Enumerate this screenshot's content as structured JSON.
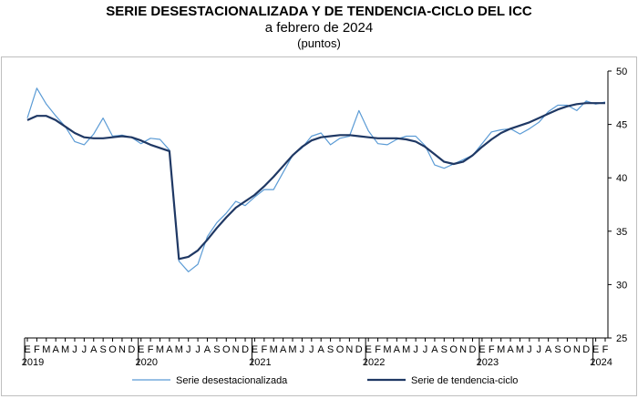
{
  "chart_data": {
    "type": "line",
    "title": "SERIE DESESTACIONALIZADA Y DE TENDENCIA-CICLO DEL ICC",
    "subtitle": "a febrero de 2024",
    "unit": "(puntos)",
    "ylim": [
      25,
      50
    ],
    "yticks": [
      "25",
      "30",
      "35",
      "40",
      "45",
      "50"
    ],
    "month_labels": [
      "E",
      "F",
      "M",
      "A",
      "M",
      "J",
      "J",
      "A",
      "S",
      "O",
      "N",
      "D"
    ],
    "year_labels": [
      "2019",
      "2020",
      "2021",
      "2022",
      "2023",
      "2024"
    ],
    "legend": [
      "Serie desestacionalizada",
      "Serie de tendencia-ciclo"
    ],
    "grid": false,
    "legend_position": "bottom",
    "colors": {
      "serie_desestacionalizada": "#5b9bd5",
      "tendencia_ciclo": "#1f3864"
    },
    "series": [
      {
        "name": "Serie desestacionalizada",
        "values": [
          45.6,
          48.4,
          46.9,
          45.8,
          44.8,
          43.4,
          43.1,
          44.1,
          45.6,
          43.9,
          44.0,
          43.8,
          43.2,
          43.7,
          43.6,
          42.6,
          32.2,
          31.2,
          31.9,
          34.5,
          35.8,
          36.7,
          37.8,
          37.4,
          38.2,
          38.9,
          38.9,
          40.5,
          42.1,
          42.8,
          43.9,
          44.2,
          43.1,
          43.7,
          43.9,
          46.3,
          44.4,
          43.2,
          43.1,
          43.6,
          43.9,
          43.9,
          43.0,
          41.2,
          40.9,
          41.3,
          41.7,
          42.1,
          43.2,
          44.3,
          44.5,
          44.6,
          44.1,
          44.6,
          45.2,
          46.2,
          46.8,
          46.8,
          46.3,
          47.2,
          46.9,
          47.1
        ]
      },
      {
        "name": "Serie de tendencia-ciclo",
        "values": [
          45.4,
          45.8,
          45.8,
          45.4,
          44.8,
          44.2,
          43.8,
          43.7,
          43.7,
          43.8,
          43.9,
          43.8,
          43.5,
          43.1,
          42.8,
          42.5,
          32.4,
          32.6,
          33.2,
          34.2,
          35.3,
          36.3,
          37.2,
          37.8,
          38.4,
          39.2,
          40.1,
          41.1,
          42.1,
          42.9,
          43.5,
          43.8,
          43.9,
          44.0,
          44.0,
          43.9,
          43.8,
          43.7,
          43.7,
          43.7,
          43.6,
          43.4,
          42.9,
          42.2,
          41.5,
          41.3,
          41.5,
          42.1,
          42.9,
          43.6,
          44.2,
          44.6,
          44.9,
          45.2,
          45.6,
          46.0,
          46.4,
          46.7,
          46.9,
          47.0,
          47.0,
          47.0
        ]
      }
    ]
  }
}
